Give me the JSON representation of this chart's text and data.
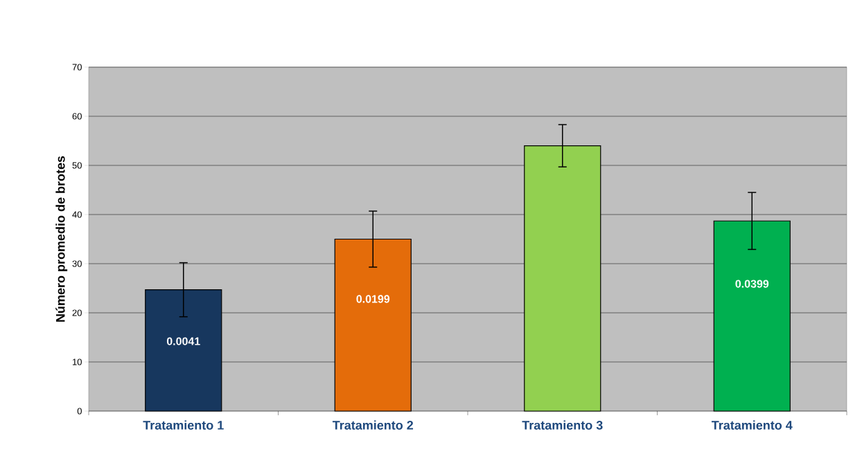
{
  "chart_data": {
    "type": "bar",
    "ylabel": "Número promedio de brotes",
    "categories": [
      "Tratamiento 1",
      "Tratamiento 2",
      "Tratamiento 3",
      "Tratamiento 4"
    ],
    "values": [
      24.7,
      35.0,
      54.0,
      38.7
    ],
    "errors": [
      5.5,
      5.7,
      4.3,
      5.8
    ],
    "colors": [
      "#17375e",
      "#e46c0a",
      "#92d050",
      "#00b050"
    ],
    "ylim": [
      0,
      70
    ],
    "yticks": [
      0,
      10,
      20,
      30,
      40,
      50,
      60,
      70
    ],
    "grid": "y",
    "annotations": [
      "0.0041",
      "0.0199",
      "0.0399"
    ]
  }
}
